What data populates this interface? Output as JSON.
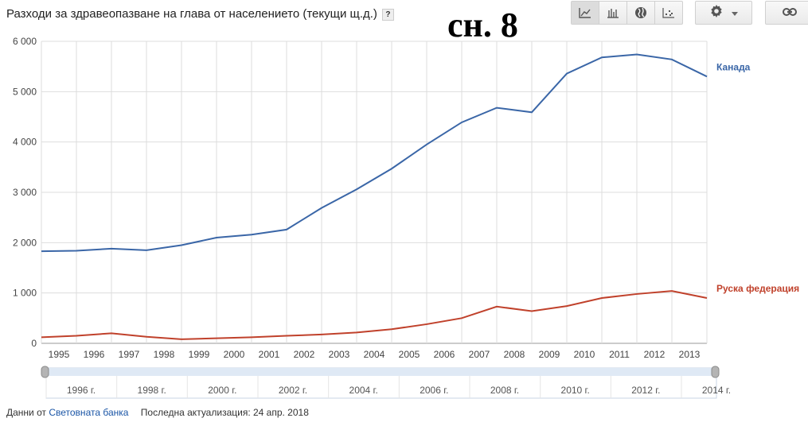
{
  "header": {
    "title": "Разходи за здравеопазване на глава от населението (текущи щ.д.)",
    "help_label": "?",
    "overlay_label": "сн. 8"
  },
  "toolbar": {
    "chart_type_buttons": [
      "line-chart-icon",
      "bar-chart-icon",
      "globe-icon",
      "scatter-icon"
    ],
    "active_button": "line-chart-icon",
    "settings_icon": "gear-icon",
    "link_icon": "chain-link-icon"
  },
  "chart_data": {
    "type": "line",
    "x": [
      1995,
      1996,
      1997,
      1998,
      1999,
      2000,
      2001,
      2002,
      2003,
      2004,
      2005,
      2006,
      2007,
      2008,
      2009,
      2010,
      2011,
      2012,
      2013,
      2014
    ],
    "xtick_labels": [
      "1995",
      "1996",
      "1997",
      "1998",
      "1999",
      "2000",
      "2001",
      "2002",
      "2003",
      "2004",
      "2005",
      "2006",
      "2007",
      "2008",
      "2009",
      "2010",
      "2011",
      "2012",
      "2013"
    ],
    "yticks": [
      0,
      1000,
      2000,
      3000,
      4000,
      5000,
      6000
    ],
    "ytick_labels": [
      "0",
      "1 000",
      "2 000",
      "3 000",
      "4 000",
      "5 000",
      "6 000"
    ],
    "ylim": [
      0,
      6000
    ],
    "grid": true,
    "series": [
      {
        "name": "Канада",
        "color": "#3a66a7",
        "values": [
          1830,
          1840,
          1880,
          1850,
          1950,
          2100,
          2160,
          2260,
          2690,
          3060,
          3470,
          3950,
          4390,
          4680,
          4590,
          5360,
          5680,
          5740,
          5640,
          5300
        ]
      },
      {
        "name": "Руска федерация",
        "color": "#c0412b",
        "values": [
          120,
          150,
          200,
          130,
          80,
          100,
          120,
          150,
          175,
          215,
          280,
          380,
          500,
          730,
          640,
          740,
          900,
          980,
          1040,
          900
        ]
      }
    ],
    "range_slider": {
      "labels": [
        "1996 г.",
        "1998 г.",
        "2000 г.",
        "2002 г.",
        "2004 г.",
        "2006 г.",
        "2008 г.",
        "2010 г.",
        "2012 г.",
        "2014 г."
      ]
    }
  },
  "footer": {
    "source_prefix": "Данни от",
    "source_link": "Световната банка",
    "updated": "Последна актуализация: 24 апр. 2018"
  }
}
